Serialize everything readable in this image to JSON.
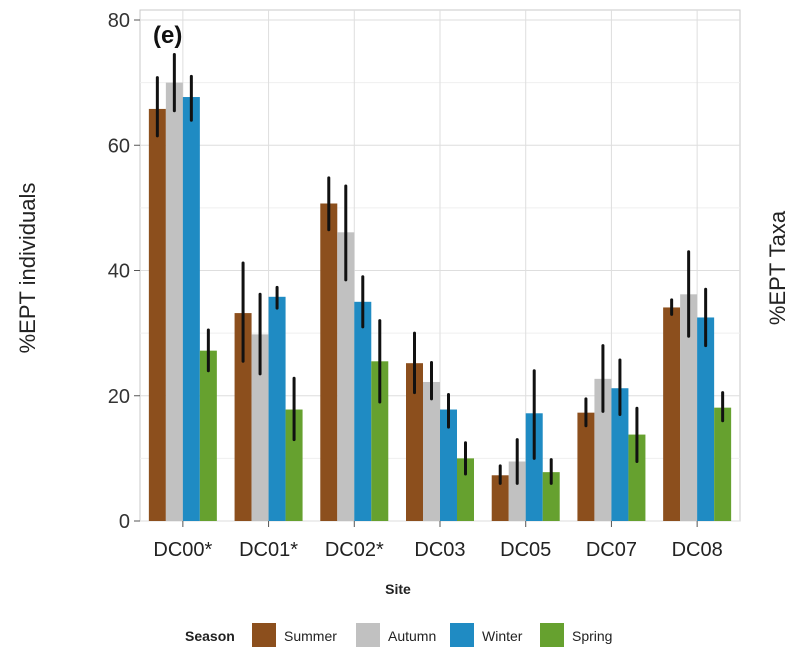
{
  "chart_data": {
    "type": "bar",
    "panel_label": "(e)",
    "ylabel": "%EPT individuals",
    "ylabel_right": "%EPT Taxa",
    "xlabel": "Site",
    "ylim": [
      0,
      80
    ],
    "yticks": [
      0,
      20,
      40,
      60,
      80
    ],
    "grid": true,
    "legend_position": "bottom",
    "legend_title": "Season",
    "categories": [
      "DC00*",
      "DC01*",
      "DC02*",
      "DC03",
      "DC05",
      "DC07",
      "DC08"
    ],
    "series": [
      {
        "name": "Summer",
        "color": "#8c4f1d",
        "values": [
          65.8,
          33.2,
          50.7,
          25.2,
          7.3,
          17.3,
          34.1
        ],
        "err_low": [
          61.5,
          25.5,
          46.5,
          20.5,
          6.0,
          15.2,
          33.0
        ],
        "err_high": [
          70.8,
          41.2,
          54.8,
          30.0,
          8.8,
          19.5,
          35.3
        ]
      },
      {
        "name": "Autumn",
        "color": "#c1c1c1",
        "values": [
          70.0,
          29.8,
          46.1,
          22.2,
          9.5,
          22.7,
          36.2
        ],
        "err_low": [
          65.5,
          23.5,
          38.5,
          19.5,
          6.0,
          17.5,
          29.5
        ],
        "err_high": [
          74.5,
          36.2,
          53.5,
          25.3,
          13.0,
          28.0,
          43.0
        ]
      },
      {
        "name": "Winter",
        "color": "#1f8bc3",
        "values": [
          67.7,
          35.8,
          35.0,
          17.8,
          17.2,
          21.2,
          32.5
        ],
        "err_low": [
          64.0,
          34.0,
          31.0,
          15.0,
          10.0,
          17.0,
          28.0
        ],
        "err_high": [
          71.0,
          37.3,
          39.0,
          20.2,
          24.0,
          25.7,
          37.0
        ]
      },
      {
        "name": "Spring",
        "color": "#66a12f",
        "values": [
          27.2,
          17.8,
          25.5,
          10.0,
          7.8,
          13.8,
          18.1
        ],
        "err_low": [
          24.0,
          13.0,
          19.0,
          7.5,
          6.0,
          9.5,
          16.0
        ],
        "err_high": [
          30.5,
          22.8,
          32.0,
          12.5,
          9.8,
          18.0,
          20.5
        ]
      }
    ]
  }
}
